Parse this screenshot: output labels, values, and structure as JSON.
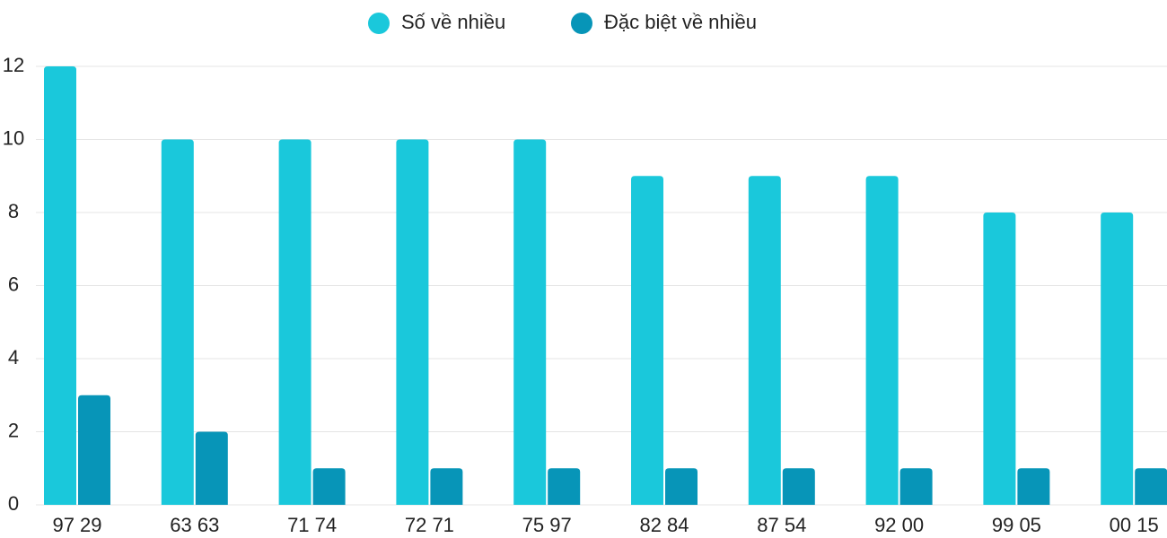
{
  "chart_data": {
    "type": "bar",
    "categories": [
      "97 29",
      "63 63",
      "71 74",
      "72 71",
      "75 97",
      "82 84",
      "87 54",
      "92 00",
      "99 05",
      "00 15"
    ],
    "series": [
      {
        "name": "Số về nhiều",
        "color": "#1ac8db",
        "values": [
          12,
          10,
          10,
          10,
          10,
          9,
          9,
          9,
          8,
          8
        ]
      },
      {
        "name": "Đặc biệt về nhiều",
        "color": "#0795b8",
        "values": [
          3,
          2,
          1,
          1,
          1,
          1,
          1,
          1,
          1,
          1
        ]
      }
    ],
    "ylim": [
      0,
      12
    ],
    "yticks": [
      0,
      2,
      4,
      6,
      8,
      10,
      12
    ],
    "grid": true,
    "legend": "top"
  }
}
